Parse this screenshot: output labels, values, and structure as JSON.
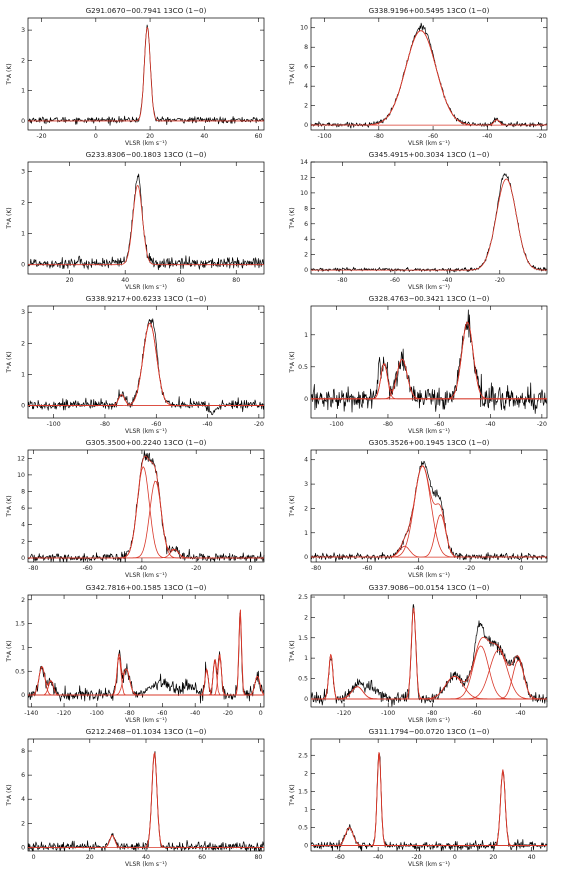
{
  "chart_data": [
    {
      "type": "line",
      "title": "G291.0670−00.7941 13CO (1−0)",
      "xlabel": "VLSR (km s⁻¹)",
      "ylabel": "T*A (K)",
      "xlim": [
        -25,
        62
      ],
      "ylim": [
        -0.3,
        3.4
      ],
      "xticks": [
        -20,
        0,
        20,
        40,
        60
      ],
      "yticks": [
        0,
        1,
        2,
        3
      ],
      "base": 0.03,
      "noise": 0.05,
      "components": [
        {
          "v": 19,
          "amp": 3.1,
          "sigma": 1.1
        }
      ],
      "extra": [],
      "series": [
        {
          "values": "observed spectrum (noisy)"
        },
        {
          "values": "gaussian fit"
        }
      ]
    },
    {
      "type": "line",
      "title": "G338.9196+00.5495 13CO (1−0)",
      "xlabel": "VLSR (km s⁻¹)",
      "ylabel": "T*A (K)",
      "xlim": [
        -105,
        -18
      ],
      "ylim": [
        -0.5,
        11
      ],
      "xticks": [
        -100,
        -80,
        -60,
        -40,
        -20
      ],
      "yticks": [
        0,
        2,
        4,
        6,
        8,
        10
      ],
      "base": 0.05,
      "noise": 0.12,
      "components": [
        {
          "v": -64.5,
          "amp": 9.7,
          "sigma": 5.6
        },
        {
          "v": -36.5,
          "amp": 0.55,
          "sigma": 1.0
        }
      ],
      "extra": [
        {
          "v": -63,
          "amp": 0.5,
          "sigma": 2
        }
      ],
      "series": [
        {
          "values": "observed spectrum (noisy)"
        },
        {
          "values": "gaussian fit"
        }
      ]
    },
    {
      "type": "line",
      "title": "G233.8306−00.1803 13CO (1−0)",
      "xlabel": "VLSR (km s⁻¹)",
      "ylabel": "T*A (K)",
      "xlim": [
        5,
        90
      ],
      "ylim": [
        -0.3,
        3.3
      ],
      "xticks": [
        20,
        40,
        60,
        80
      ],
      "yticks": [
        0,
        1,
        2,
        3
      ],
      "base": 0.05,
      "noise": 0.09,
      "components": [
        {
          "v": 44.5,
          "amp": 2.55,
          "sigma": 1.7
        }
      ],
      "extra": [
        {
          "v": 45,
          "amp": 0.3,
          "sigma": 0.6
        }
      ],
      "series": [
        {
          "values": "observed spectrum (noisy)"
        },
        {
          "values": "gaussian fit"
        }
      ]
    },
    {
      "type": "line",
      "title": "G345.4915+00.3034 13CO (1−0)",
      "xlabel": "VLSR (km s⁻¹)",
      "ylabel": "T*A (K)",
      "xlim": [
        -92,
        -2
      ],
      "ylim": [
        -0.5,
        14
      ],
      "xticks": [
        -80,
        -60,
        -40,
        -20
      ],
      "yticks": [
        0,
        2,
        4,
        6,
        8,
        10,
        12,
        14
      ],
      "base": 0.05,
      "noise": 0.12,
      "components": [
        {
          "v": -17.5,
          "amp": 11.8,
          "sigma": 3.8
        }
      ],
      "extra": [
        {
          "v": -19,
          "amp": 0.9,
          "sigma": 1.2
        }
      ],
      "series": [
        {
          "values": "observed spectrum (noisy)"
        },
        {
          "values": "gaussian fit"
        }
      ]
    },
    {
      "type": "line",
      "title": "G338.9217+00.6233 13CO (1−0)",
      "xlabel": "VLSR (km s⁻¹)",
      "ylabel": "T*A (K)",
      "xlim": [
        -110,
        -18
      ],
      "ylim": [
        -0.4,
        3.2
      ],
      "xticks": [
        -100,
        -80,
        -60,
        -40,
        -20
      ],
      "yticks": [
        0,
        1,
        2,
        3
      ],
      "base": 0.03,
      "noise": 0.08,
      "components": [
        {
          "v": -62.5,
          "amp": 2.65,
          "sigma": 2.6
        },
        {
          "v": -73.5,
          "amp": 0.35,
          "sigma": 1.2
        }
      ],
      "extra": [
        {
          "v": -60.5,
          "amp": 0.35,
          "sigma": 0.8
        },
        {
          "v": -38,
          "amp": -0.25,
          "sigma": 1.5
        }
      ],
      "series": [
        {
          "values": "observed spectrum (noisy)"
        },
        {
          "values": "gaussian fit"
        }
      ]
    },
    {
      "type": "line",
      "title": "G328.4763−00.3421 13CO (1−0)",
      "xlabel": "VLSR (km s⁻¹)",
      "ylabel": "T*A (K)",
      "xlim": [
        -110,
        -18
      ],
      "ylim": [
        -0.3,
        1.45
      ],
      "xticks": [
        -100,
        -80,
        -60,
        -40,
        -20
      ],
      "yticks": [
        0,
        0.5,
        1.0
      ],
      "base": 0.0,
      "noise": 0.09,
      "components": [
        {
          "v": -81.5,
          "amp": 0.55,
          "sigma": 1.3
        },
        {
          "v": -74.5,
          "amp": 0.62,
          "sigma": 2.0
        },
        {
          "v": -49,
          "amp": 1.2,
          "sigma": 2.2
        }
      ],
      "extra": [
        {
          "v": -83.5,
          "amp": 0.35,
          "sigma": 0.5
        }
      ],
      "series": [
        {
          "values": "observed spectrum (noisy)"
        },
        {
          "values": "gaussian fit"
        }
      ]
    },
    {
      "type": "line",
      "title": "G305.3500+00.2240 13CO (1−0)",
      "xlabel": "VLSR (km s⁻¹)",
      "ylabel": "T*A (K)",
      "xlim": [
        -82,
        5
      ],
      "ylim": [
        -0.5,
        13
      ],
      "xticks": [
        -80,
        -60,
        -40,
        -20,
        0
      ],
      "yticks": [
        0,
        2,
        4,
        6,
        8,
        10,
        12
      ],
      "base": 0.05,
      "noise": 0.25,
      "components": [
        {
          "v": -39.5,
          "amp": 11,
          "sigma": 2.2
        },
        {
          "v": -35,
          "amp": 9.3,
          "sigma": 2.1
        },
        {
          "v": -28,
          "amp": 1.0,
          "sigma": 1.5
        }
      ],
      "extra": [],
      "series": [
        {
          "values": "observed spectrum (noisy)"
        },
        {
          "values": "gaussian fit"
        }
      ]
    },
    {
      "type": "line",
      "title": "G305.3526+00.1945 13CO (1−0)",
      "xlabel": "VLSR (km s⁻¹)",
      "ylabel": "T*A (K)",
      "xlim": [
        -82,
        10
      ],
      "ylim": [
        -0.2,
        4.4
      ],
      "xticks": [
        -80,
        -60,
        -40,
        -20,
        0
      ],
      "yticks": [
        0,
        1,
        2,
        3,
        4
      ],
      "base": 0.02,
      "noise": 0.07,
      "components": [
        {
          "v": -38.5,
          "amp": 3.75,
          "sigma": 3.2
        },
        {
          "v": -31.5,
          "amp": 1.75,
          "sigma": 2.0
        },
        {
          "v": -45.5,
          "amp": 0.45,
          "sigma": 2.0
        }
      ],
      "extra": [
        {
          "v": -34,
          "amp": 0.4,
          "sigma": 2.5
        }
      ],
      "series": [
        {
          "values": "observed spectrum (noisy)"
        },
        {
          "values": "gaussian fit"
        }
      ]
    },
    {
      "type": "line",
      "title": "G342.7816+00.1585 13CO (1−0)",
      "xlabel": "VLSR (km s⁻¹)",
      "ylabel": "T*A (K)",
      "xlim": [
        -142,
        2
      ],
      "ylim": [
        -0.25,
        2.1
      ],
      "xticks": [
        -140,
        -120,
        -100,
        -80,
        -60,
        -40,
        -20,
        0
      ],
      "yticks": [
        0,
        0.5,
        1.0,
        1.5,
        2.0
      ],
      "base": 0.0,
      "noise": 0.07,
      "components": [
        {
          "v": -133.5,
          "amp": 0.6,
          "sigma": 1.8
        },
        {
          "v": -128,
          "amp": 0.3,
          "sigma": 1.5
        },
        {
          "v": -86.5,
          "amp": 0.82,
          "sigma": 1.2
        },
        {
          "v": -82,
          "amp": 0.55,
          "sigma": 2.0
        },
        {
          "v": -33,
          "amp": 0.55,
          "sigma": 1.0
        },
        {
          "v": -28,
          "amp": 0.75,
          "sigma": 1.0
        },
        {
          "v": -25,
          "amp": 0.85,
          "sigma": 1.0
        },
        {
          "v": -12.5,
          "amp": 1.8,
          "sigma": 0.8
        },
        {
          "v": -2,
          "amp": 0.4,
          "sigma": 1.5
        }
      ],
      "extra": [
        {
          "v": -60,
          "amp": 0.25,
          "sigma": 6
        },
        {
          "v": -44,
          "amp": 0.2,
          "sigma": 4
        }
      ],
      "series": [
        {
          "values": "observed spectrum (noisy)"
        },
        {
          "values": "gaussian fit"
        }
      ]
    },
    {
      "type": "line",
      "title": "G337.9086−00.0154 13CO (1−0)",
      "xlabel": "VLSR (km s⁻¹)",
      "ylabel": "T*A (K)",
      "xlim": [
        -135,
        -28
      ],
      "ylim": [
        -0.2,
        2.55
      ],
      "xticks": [
        -120,
        -100,
        -80,
        -60,
        -40
      ],
      "yticks": [
        0,
        0.5,
        1.0,
        1.5,
        2.0,
        2.5
      ],
      "base": 0.0,
      "noise": 0.07,
      "components": [
        {
          "v": -126,
          "amp": 1.1,
          "sigma": 0.9
        },
        {
          "v": -114,
          "amp": 0.3,
          "sigma": 2.5
        },
        {
          "v": -88.5,
          "amp": 2.25,
          "sigma": 1.0
        },
        {
          "v": -70,
          "amp": 0.55,
          "sigma": 4.0
        },
        {
          "v": -58,
          "amp": 1.3,
          "sigma": 3.5
        },
        {
          "v": -50,
          "amp": 1.2,
          "sigma": 4.0
        },
        {
          "v": -41,
          "amp": 0.95,
          "sigma": 2.5
        }
      ],
      "extra": [
        {
          "v": -59,
          "amp": 0.45,
          "sigma": 1.5
        },
        {
          "v": -108,
          "amp": 0.25,
          "sigma": 4
        }
      ],
      "series": [
        {
          "values": "observed spectrum (noisy)"
        },
        {
          "values": "gaussian fit"
        }
      ]
    },
    {
      "type": "line",
      "title": "G212.2468−01.1034 13CO (1−0)",
      "xlabel": "VLSR (km s⁻¹)",
      "ylabel": "T*A (K)",
      "xlim": [
        -2,
        82
      ],
      "ylim": [
        -0.3,
        9
      ],
      "xticks": [
        0,
        20,
        40,
        60,
        80
      ],
      "yticks": [
        0,
        2,
        4,
        6,
        8
      ],
      "base": 0.05,
      "noise": 0.18,
      "components": [
        {
          "v": 43,
          "amp": 7.9,
          "sigma": 0.9
        },
        {
          "v": 28,
          "amp": 1.0,
          "sigma": 0.9
        }
      ],
      "extra": [],
      "series": [
        {
          "values": "observed spectrum (noisy)"
        },
        {
          "values": "gaussian fit"
        }
      ]
    },
    {
      "type": "line",
      "title": "G311.1794−00.0720 13CO (1−0)",
      "xlabel": "VLSR (km s⁻¹)",
      "ylabel": "T*A (K)",
      "xlim": [
        -75,
        48
      ],
      "ylim": [
        -0.15,
        2.95
      ],
      "xticks": [
        -60,
        -40,
        -20,
        0,
        20,
        40
      ],
      "yticks": [
        0,
        0.5,
        1.0,
        1.5,
        2.0,
        2.5
      ],
      "base": 0.0,
      "noise": 0.06,
      "components": [
        {
          "v": -39.5,
          "amp": 2.6,
          "sigma": 1.0
        },
        {
          "v": -55,
          "amp": 0.5,
          "sigma": 2.0
        },
        {
          "v": 25,
          "amp": 2.1,
          "sigma": 1.2
        }
      ],
      "extra": [],
      "series": [
        {
          "values": "observed spectrum (noisy)"
        },
        {
          "values": "gaussian fit"
        }
      ]
    }
  ],
  "colors": {
    "observed": "#000000",
    "fit": "#d8382a",
    "frame": "#000000"
  }
}
